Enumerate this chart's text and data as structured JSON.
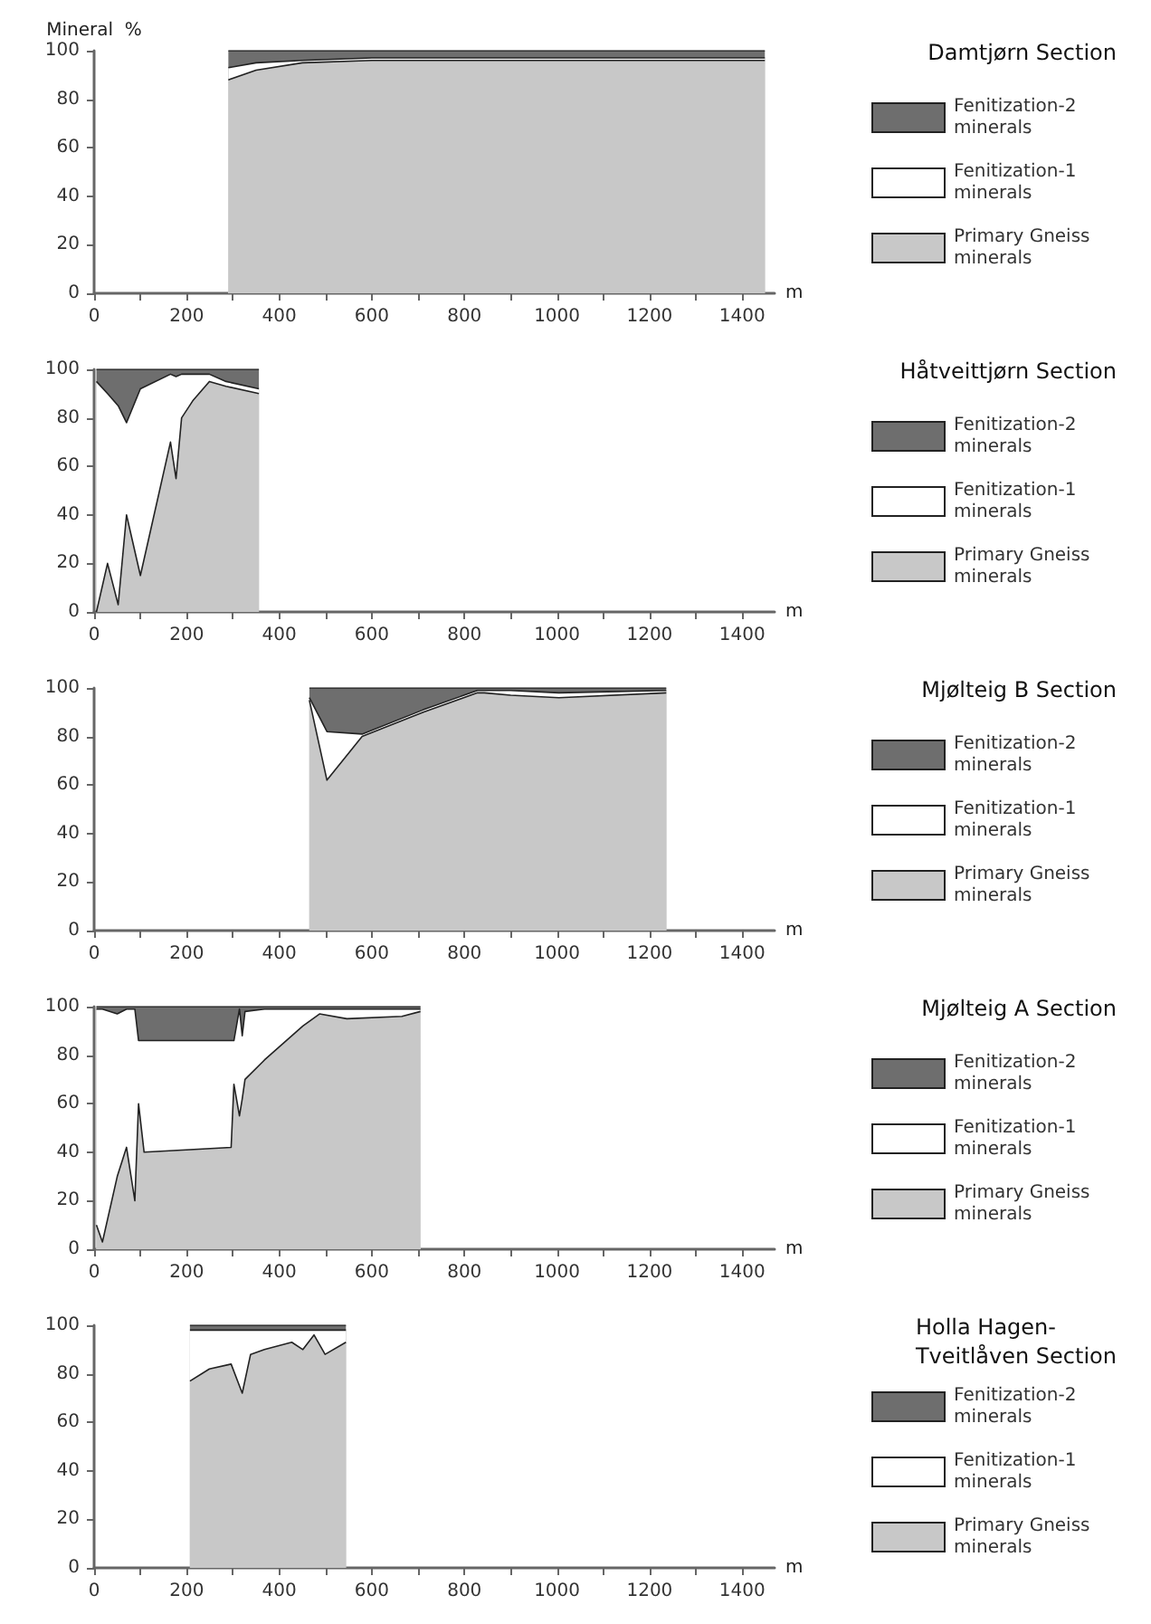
{
  "chart_data": [
    {
      "type": "area",
      "legend_title": "Damtjørn Section",
      "ylabel": "Mineral  %",
      "xlabel": "m",
      "stacked": true,
      "legend": "right",
      "xlim": [
        0,
        1470
      ],
      "ylim": [
        0,
        100
      ],
      "yticks": [
        0,
        20,
        40,
        60,
        80,
        100
      ],
      "xticks": [
        0,
        {
          "value": 100,
          "label": null
        },
        200,
        {
          "value": 300,
          "label": null
        },
        400,
        {
          "value": 500,
          "label": null
        },
        600,
        {
          "value": 700,
          "label": null
        },
        800,
        {
          "value": 900,
          "label": null
        },
        1000,
        {
          "value": 1100,
          "label": null
        },
        1200,
        {
          "value": 1300,
          "label": null
        },
        1400
      ],
      "x": [
        290,
        350,
        450,
        600,
        800,
        1000,
        1200,
        1449
      ],
      "series": [
        {
          "name": "Primary Gneiss minerals",
          "color": "#c8c8c8",
          "values": [
            88,
            92,
            95,
            96,
            96,
            96,
            96,
            96
          ]
        },
        {
          "name": "Fenitization-1 minerals",
          "color": "#ffffff",
          "values": [
            5,
            3,
            1,
            1,
            1,
            1,
            1,
            1
          ]
        },
        {
          "name": "Fenitization-2 minerals",
          "color": "#6e6e6e",
          "values": [
            7,
            5,
            4,
            3,
            3,
            3,
            3,
            3
          ]
        }
      ]
    },
    {
      "type": "area",
      "legend_title": "Håtveittjørn Section",
      "xlabel": "m",
      "stacked": true,
      "legend": "right",
      "xlim": [
        0,
        1470
      ],
      "ylim": [
        0,
        100
      ],
      "yticks": [
        0,
        20,
        40,
        60,
        80,
        100
      ],
      "xticks": [
        0,
        {
          "value": 100,
          "label": null
        },
        200,
        {
          "value": 300,
          "label": null
        },
        400,
        {
          "value": 500,
          "label": null
        },
        600,
        {
          "value": 700,
          "label": null
        },
        800,
        {
          "value": 900,
          "label": null
        },
        1000,
        {
          "value": 1100,
          "label": null
        },
        1200,
        {
          "value": 1300,
          "label": null
        },
        1400
      ],
      "x": [
        5,
        29,
        52,
        70,
        100,
        165,
        177,
        189,
        213,
        249,
        285,
        356
      ],
      "series": [
        {
          "name": "Primary Gneiss minerals",
          "color": "#c8c8c8",
          "values": [
            0,
            20,
            3,
            40,
            15,
            70,
            55,
            80,
            87,
            95,
            93,
            90
          ]
        },
        {
          "name": "Fenitization-1 minerals",
          "color": "#ffffff",
          "values": [
            95,
            70,
            82,
            38,
            77,
            28,
            42,
            18,
            11,
            3,
            2,
            2
          ]
        },
        {
          "name": "Fenitization-2 minerals",
          "color": "#6e6e6e",
          "values": [
            5,
            10,
            15,
            22,
            8,
            2,
            3,
            2,
            2,
            2,
            5,
            8
          ]
        }
      ]
    },
    {
      "type": "area",
      "legend_title": "Mjølteig B Section",
      "xlabel": "m",
      "stacked": true,
      "legend": "right",
      "xlim": [
        0,
        1470
      ],
      "ylim": [
        0,
        100
      ],
      "yticks": [
        0,
        20,
        40,
        60,
        80,
        100
      ],
      "xticks": [
        0,
        {
          "value": 100,
          "label": null
        },
        200,
        {
          "value": 300,
          "label": null
        },
        400,
        {
          "value": 500,
          "label": null
        },
        600,
        {
          "value": 700,
          "label": null
        },
        800,
        {
          "value": 900,
          "label": null
        },
        1000,
        {
          "value": 1100,
          "label": null
        },
        1200,
        {
          "value": 1300,
          "label": null
        },
        1400
      ],
      "x": [
        465,
        503,
        579,
        711,
        828,
        843,
        900,
        1004,
        1236
      ],
      "series": [
        {
          "name": "Primary Gneiss minerals",
          "color": "#c8c8c8",
          "values": [
            95,
            62,
            80,
            90,
            98,
            98,
            97,
            96,
            98
          ]
        },
        {
          "name": "Fenitization-1 minerals",
          "color": "#ffffff",
          "values": [
            1,
            20,
            1,
            1,
            1,
            1,
            2,
            2,
            1
          ]
        },
        {
          "name": "Fenitization-2 minerals",
          "color": "#6e6e6e",
          "values": [
            4,
            18,
            19,
            9,
            1,
            1,
            1,
            2,
            1
          ]
        }
      ]
    },
    {
      "type": "area",
      "legend_title": "Mjølteig A Section",
      "xlabel": "m",
      "stacked": true,
      "legend": "right",
      "xlim": [
        0,
        1470
      ],
      "ylim": [
        0,
        100
      ],
      "yticks": [
        0,
        20,
        40,
        60,
        80,
        100
      ],
      "xticks": [
        0,
        {
          "value": 100,
          "label": null
        },
        200,
        {
          "value": 300,
          "label": null
        },
        400,
        {
          "value": 500,
          "label": null
        },
        600,
        {
          "value": 700,
          "label": null
        },
        800,
        {
          "value": 900,
          "label": null
        },
        1000,
        {
          "value": 1100,
          "label": null
        },
        1200,
        {
          "value": 1300,
          "label": null
        },
        1400
      ],
      "x": [
        5,
        18,
        50,
        70,
        88,
        96,
        108,
        296,
        302,
        314,
        320,
        326,
        368,
        451,
        487,
        546,
        665,
        705
      ],
      "series": [
        {
          "name": "Primary Gneiss minerals",
          "color": "#c8c8c8",
          "values": [
            10,
            3,
            30,
            42,
            20,
            60,
            40,
            42,
            68,
            55,
            62,
            70,
            78,
            92,
            97,
            95,
            96,
            98
          ]
        },
        {
          "name": "Fenitization-1 minerals",
          "color": "#ffffff",
          "values": [
            89,
            96,
            67,
            57,
            79,
            26,
            46,
            44,
            18,
            44,
            26,
            28,
            21,
            7,
            2,
            4,
            3,
            1
          ]
        },
        {
          "name": "Fenitization-2 minerals",
          "color": "#6e6e6e",
          "values": [
            1,
            1,
            3,
            1,
            1,
            14,
            14,
            14,
            14,
            1,
            12,
            2,
            1,
            1,
            1,
            1,
            1,
            1
          ]
        }
      ]
    },
    {
      "type": "area",
      "legend_title": "Holla Hagen-\nTveitlåven Section",
      "xlabel": "m",
      "stacked": true,
      "legend": "right",
      "xlim": [
        0,
        1470
      ],
      "ylim": [
        0,
        100
      ],
      "yticks": [
        0,
        20,
        40,
        60,
        80,
        100
      ],
      "xticks": [
        0,
        {
          "value": 100,
          "label": null
        },
        200,
        {
          "value": 300,
          "label": null
        },
        400,
        {
          "value": 500,
          "label": null
        },
        600,
        {
          "value": 700,
          "label": null
        },
        800,
        {
          "value": 900,
          "label": null
        },
        1000,
        {
          "value": 1100,
          "label": null
        },
        1200,
        {
          "value": 1300,
          "label": null
        },
        1400
      ],
      "x": [
        207,
        249,
        296,
        320,
        338,
        368,
        427,
        451,
        475,
        499,
        544
      ],
      "series": [
        {
          "name": "Primary Gneiss minerals",
          "color": "#c8c8c8",
          "values": [
            77,
            82,
            84,
            72,
            88,
            90,
            93,
            90,
            96,
            88,
            93
          ]
        },
        {
          "name": "Fenitization-1 minerals",
          "color": "#ffffff",
          "values": [
            21,
            16,
            14,
            26,
            10,
            8,
            5,
            8,
            2,
            10,
            5
          ]
        },
        {
          "name": "Fenitization-2 minerals",
          "color": "#6e6e6e",
          "values": [
            2,
            2,
            2,
            2,
            2,
            2,
            2,
            2,
            2,
            2,
            2
          ]
        }
      ]
    }
  ]
}
